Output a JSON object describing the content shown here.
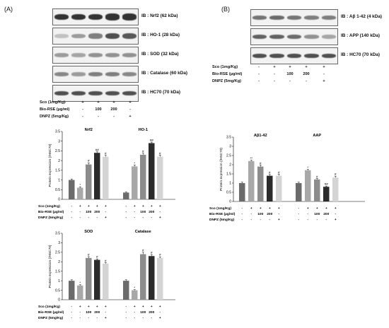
{
  "panel_a": {
    "letter": "(A)",
    "blots": [
      {
        "label": "IB : Nrf2 (62 kDa)"
      },
      {
        "label": "IB : HO-1 (28 kDa)"
      },
      {
        "label": "IB : SOD (32 kDa)"
      },
      {
        "label": "IB : Catalase (60 kDa)"
      },
      {
        "label": "IB : HC70 (70 kDa)"
      }
    ],
    "treatment_rows": [
      {
        "label": "Sco (1mg/Kg)",
        "values": [
          "-",
          "+",
          "+",
          "+",
          "+"
        ]
      },
      {
        "label": "Bio-RSE (µg/ml)",
        "values": [
          "-",
          "-",
          "100",
          "200",
          "-"
        ]
      },
      {
        "label": "DNPZ (5mg/Kg)",
        "values": [
          "-",
          "-",
          "-",
          "-",
          "+"
        ]
      }
    ]
  },
  "panel_b": {
    "letter": "(B)",
    "blots": [
      {
        "label": "IB : Aβ 1-42 (4 kDa)"
      },
      {
        "label": "IB : APP (140 kDa)"
      },
      {
        "label": "IB : HC70 (70 kDa)"
      }
    ],
    "treatment_rows": [
      {
        "label": "Sco (1mg/Kg)",
        "values": [
          "-",
          "+",
          "+",
          "+",
          "+"
        ]
      },
      {
        "label": "Bio-RSE (µg/ml)",
        "values": [
          "-",
          "-",
          "100",
          "200",
          "-"
        ]
      },
      {
        "label": "DNPZ (5mg/Kg)",
        "values": [
          "-",
          "-",
          "-",
          "-",
          "+"
        ]
      }
    ]
  },
  "colors": {
    "bar_fills": [
      "#6b6b6b",
      "#a8a8a8",
      "#8c8c8c",
      "#2b2b2b",
      "#d4d4d4"
    ]
  },
  "chart_data": [
    {
      "type": "bar",
      "ylabel": "Protein expression (/HSC70)",
      "ylim": [
        0,
        3.5
      ],
      "yticks": [
        "0",
        "0.5",
        "1",
        "1.5",
        "2",
        "2.5",
        "3",
        "3.5"
      ],
      "groups": [
        {
          "title": "Nrf2",
          "values": [
            1.0,
            0.6,
            1.8,
            2.4,
            2.2
          ],
          "errors": [
            0.05,
            0.05,
            0.08,
            0.05,
            0.07
          ],
          "marks": [
            "",
            "*",
            "#",
            "##",
            "#"
          ]
        },
        {
          "title": "HO-1",
          "values": [
            0.35,
            1.7,
            2.3,
            2.9,
            2.2
          ],
          "errors": [
            0.03,
            0.07,
            0.08,
            0.05,
            0.08
          ],
          "marks": [
            "",
            "*",
            "#",
            "##",
            "#"
          ]
        }
      ],
      "treatment_rows": [
        {
          "label": "Sco (1mg/Kg)",
          "values": [
            "-",
            "+",
            "+",
            "+",
            "+"
          ]
        },
        {
          "label": "Bio-RSE (µg/ml)",
          "values": [
            "-",
            "-",
            "100",
            "200",
            "-"
          ]
        },
        {
          "label": "DNPZ (5mg/Kg)",
          "values": [
            "-",
            "-",
            "-",
            "-",
            "+"
          ]
        }
      ]
    },
    {
      "type": "bar",
      "ylabel": "Protein expression (/HSC70)",
      "ylim": [
        0,
        3.5
      ],
      "yticks": [
        "0",
        "0.5",
        "1",
        "1.5",
        "2",
        "2.5",
        "3",
        "3.5"
      ],
      "groups": [
        {
          "title": "SOD",
          "values": [
            1.0,
            0.75,
            2.2,
            2.1,
            1.9
          ],
          "errors": [
            0.05,
            0.04,
            0.07,
            0.05,
            0.05
          ],
          "marks": [
            "",
            "*",
            "#",
            "#",
            "#"
          ]
        },
        {
          "title": "Catalase",
          "values": [
            1.0,
            0.5,
            2.4,
            2.3,
            2.2
          ],
          "errors": [
            0.05,
            0.03,
            0.1,
            0.08,
            0.06
          ],
          "marks": [
            "",
            "*",
            "#",
            "#",
            "#"
          ]
        }
      ],
      "treatment_rows": [
        {
          "label": "Sco (1mg/Kg)",
          "values": [
            "-",
            "+",
            "+",
            "+",
            "+"
          ]
        },
        {
          "label": "Bio-RSE (µg/ml)",
          "values": [
            "-",
            "-",
            "100",
            "200",
            "-"
          ]
        },
        {
          "label": "DNPZ (5mg/Kg)",
          "values": [
            "-",
            "-",
            "-",
            "-",
            "+"
          ]
        }
      ]
    },
    {
      "type": "bar",
      "ylabel": "Protein expression (/HSC70)",
      "ylim": [
        0,
        3.5
      ],
      "yticks": [
        "0",
        "0.5",
        "1",
        "1.5",
        "2",
        "2.5",
        "3",
        "3.5"
      ],
      "groups": [
        {
          "title": "Aβ1-42",
          "values": [
            1.0,
            2.2,
            1.9,
            1.4,
            1.4
          ],
          "errors": [
            0.05,
            0.05,
            0.08,
            0.07,
            0.08
          ],
          "marks": [
            "",
            "**",
            "#",
            "#",
            "#"
          ]
        },
        {
          "title": "AAP",
          "values": [
            1.0,
            1.7,
            1.2,
            0.8,
            1.3
          ],
          "errors": [
            0.05,
            0.05,
            0.05,
            0.04,
            0.08
          ],
          "marks": [
            "",
            "*",
            "#",
            "##",
            "#"
          ]
        }
      ],
      "treatment_rows": [
        {
          "label": "Sco (1mg/Kg)",
          "values": [
            "-",
            "+",
            "+",
            "+",
            "+"
          ]
        },
        {
          "label": "Bio-RSE (µg/ml)",
          "values": [
            "-",
            "-",
            "100",
            "200",
            "-"
          ]
        },
        {
          "label": "DNPZ (5mg/Kg)",
          "values": [
            "-",
            "-",
            "-",
            "-",
            "+"
          ]
        }
      ]
    }
  ]
}
